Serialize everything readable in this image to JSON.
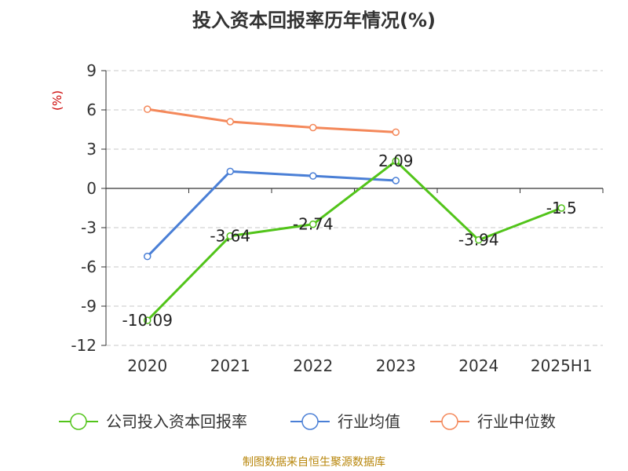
{
  "chart_data": {
    "type": "line",
    "title": "投入资本回报率历年情况(%)",
    "ylabel": "(%)",
    "categories": [
      "2020",
      "2021",
      "2022",
      "2023",
      "2024",
      "2025H1"
    ],
    "ylim": [
      -12,
      9
    ],
    "yticks": [
      9,
      6,
      3,
      0,
      -3,
      -6,
      -9,
      -12
    ],
    "grid": true,
    "legend_position": "bottom",
    "series": [
      {
        "name": "公司投入资本回报率",
        "color": "#52c41a",
        "values": [
          -10.09,
          -3.64,
          -2.74,
          2.09,
          -3.94,
          -1.5
        ],
        "labels": [
          "-10.09",
          "-3.64",
          "-2.74",
          "2.09",
          "-3.94",
          "-1.5"
        ]
      },
      {
        "name": "行业均值",
        "color": "#4a7fd6",
        "values": [
          -5.2,
          1.3,
          0.95,
          0.6,
          null,
          null
        ]
      },
      {
        "name": "行业中位数",
        "color": "#f4885a",
        "values": [
          6.05,
          5.1,
          4.65,
          4.3,
          null,
          null
        ]
      }
    ]
  },
  "source": "制图数据来自恒生聚源数据库"
}
